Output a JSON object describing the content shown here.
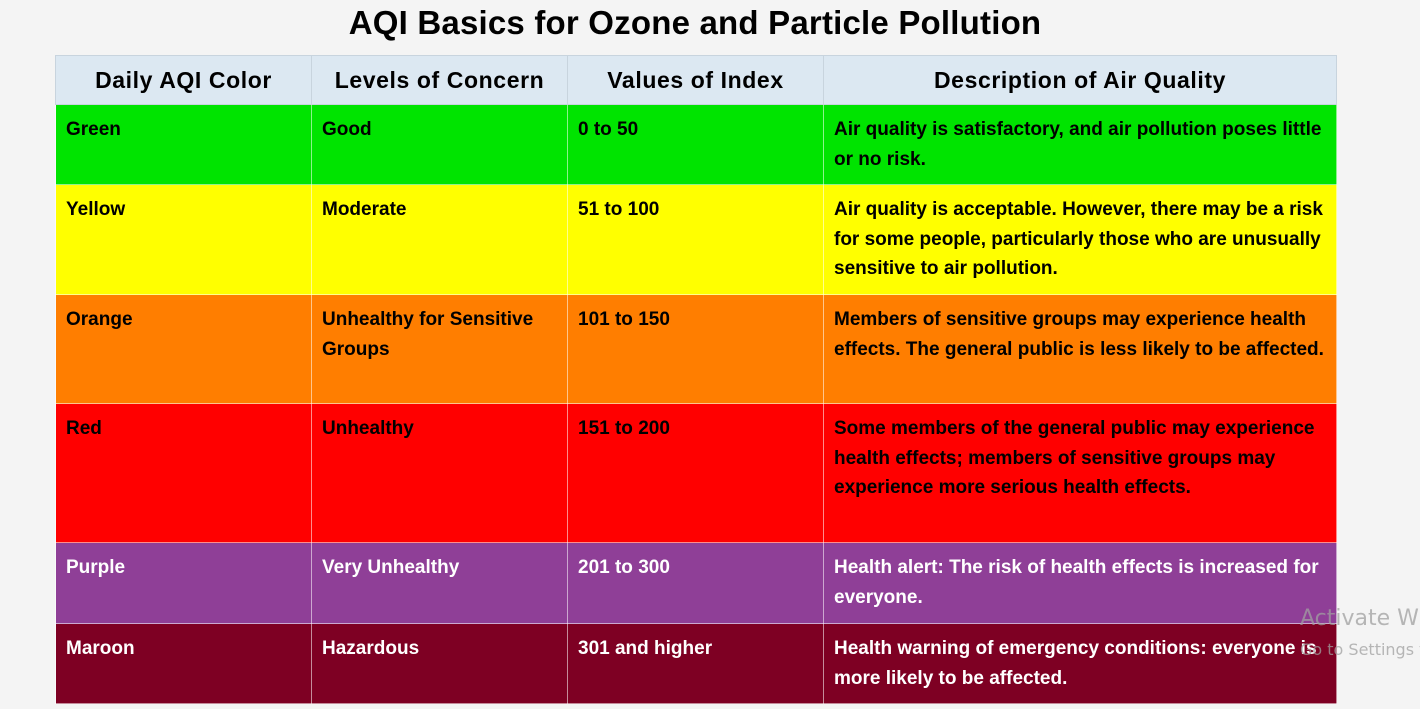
{
  "title": "AQI Basics for Ozone and Particle Pollution",
  "table": {
    "headers": [
      "Daily AQI Color",
      "Levels of Concern",
      "Values of Index",
      "Description of Air Quality"
    ],
    "rows": [
      {
        "color_name": "Green",
        "level": "Good",
        "values": "0 to 50",
        "description": "Air quality is satisfactory, and air pollution poses little or no risk.",
        "bg": "#00e400",
        "text_color": "#000000"
      },
      {
        "color_name": "Yellow",
        "level": "Moderate",
        "values": "51 to 100",
        "description": "Air quality is acceptable. However, there may be a risk for some people, particularly those who are unusually sensitive to air pollution.",
        "bg": "#ffff00",
        "text_color": "#000000"
      },
      {
        "color_name": "Orange",
        "level": "Unhealthy for Sensitive Groups",
        "values": "101 to 150",
        "description": "Members of sensitive groups may experience health effects. The general public is less likely to be affected.",
        "bg": "#ff7e00",
        "text_color": "#000000"
      },
      {
        "color_name": "Red",
        "level": "Unhealthy",
        "values": "151 to 200",
        "description": "Some members of the general public may experience health effects; members of sensitive groups may experience more serious health effects.",
        "bg": "#ff0000",
        "text_color": "#000000"
      },
      {
        "color_name": "Purple",
        "level": "Very Unhealthy",
        "values": "201 to 300",
        "description": "Health alert: The risk of health effects is increased for everyone.",
        "bg": "#8f3f97",
        "text_color": "#ffffff"
      },
      {
        "color_name": "Maroon",
        "level": "Hazardous",
        "values": "301 and higher",
        "description": "Health warning of emergency conditions: everyone is more likely to be affected.",
        "bg": "#7e0023",
        "text_color": "#ffffff"
      }
    ]
  },
  "watermark": {
    "line1": "Activate Wi",
    "line2": "Go to Settings t"
  },
  "colors": {
    "header_bg": "#dce8f2",
    "page_bg": "#f4f4f4"
  }
}
